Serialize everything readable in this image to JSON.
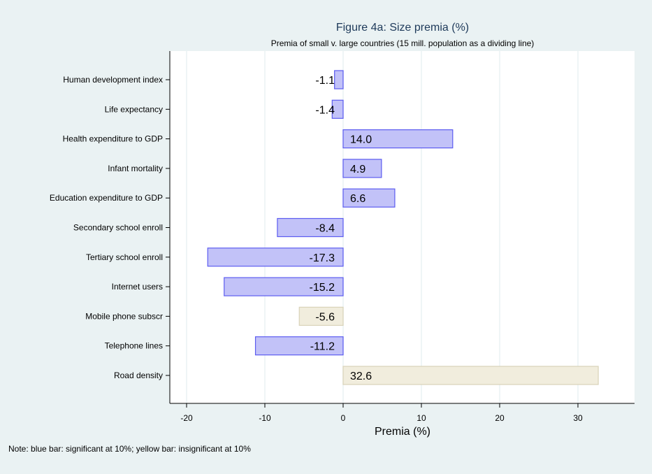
{
  "chart_data": {
    "type": "bar",
    "orientation": "horizontal",
    "title": "Figure 4a: Size premia (%)",
    "subtitle": "Premia of small v. large countries (15 mill. population as a dividing line)",
    "xlabel": "Premia (%)",
    "xlim": [
      -22,
      37
    ],
    "xticks": [
      -20,
      -10,
      0,
      10,
      20,
      30
    ],
    "categories": [
      "Human development index",
      "Life expectancy",
      "Health expenditure to GDP",
      "Infant mortality",
      "Education expenditure to GDP",
      "Secondary school enroll",
      "Tertiary school enroll",
      "Internet users",
      "Mobile phone subscr",
      "Telephone lines",
      "Road density"
    ],
    "values": [
      -1.1,
      -1.4,
      14.0,
      4.9,
      6.6,
      -8.4,
      -17.3,
      -15.2,
      -5.6,
      -11.2,
      32.6
    ],
    "significant": [
      true,
      true,
      true,
      true,
      true,
      true,
      true,
      true,
      false,
      true,
      false
    ],
    "colors": {
      "sig_fill": "#c2c2f8",
      "sig_stroke": "#5c5cf0",
      "insig_fill": "#f1eddd",
      "insig_stroke": "#d9d3b9"
    },
    "grid": true,
    "note": "Note:  blue bar: significant at 10%; yellow bar: insignificant at 10%"
  }
}
